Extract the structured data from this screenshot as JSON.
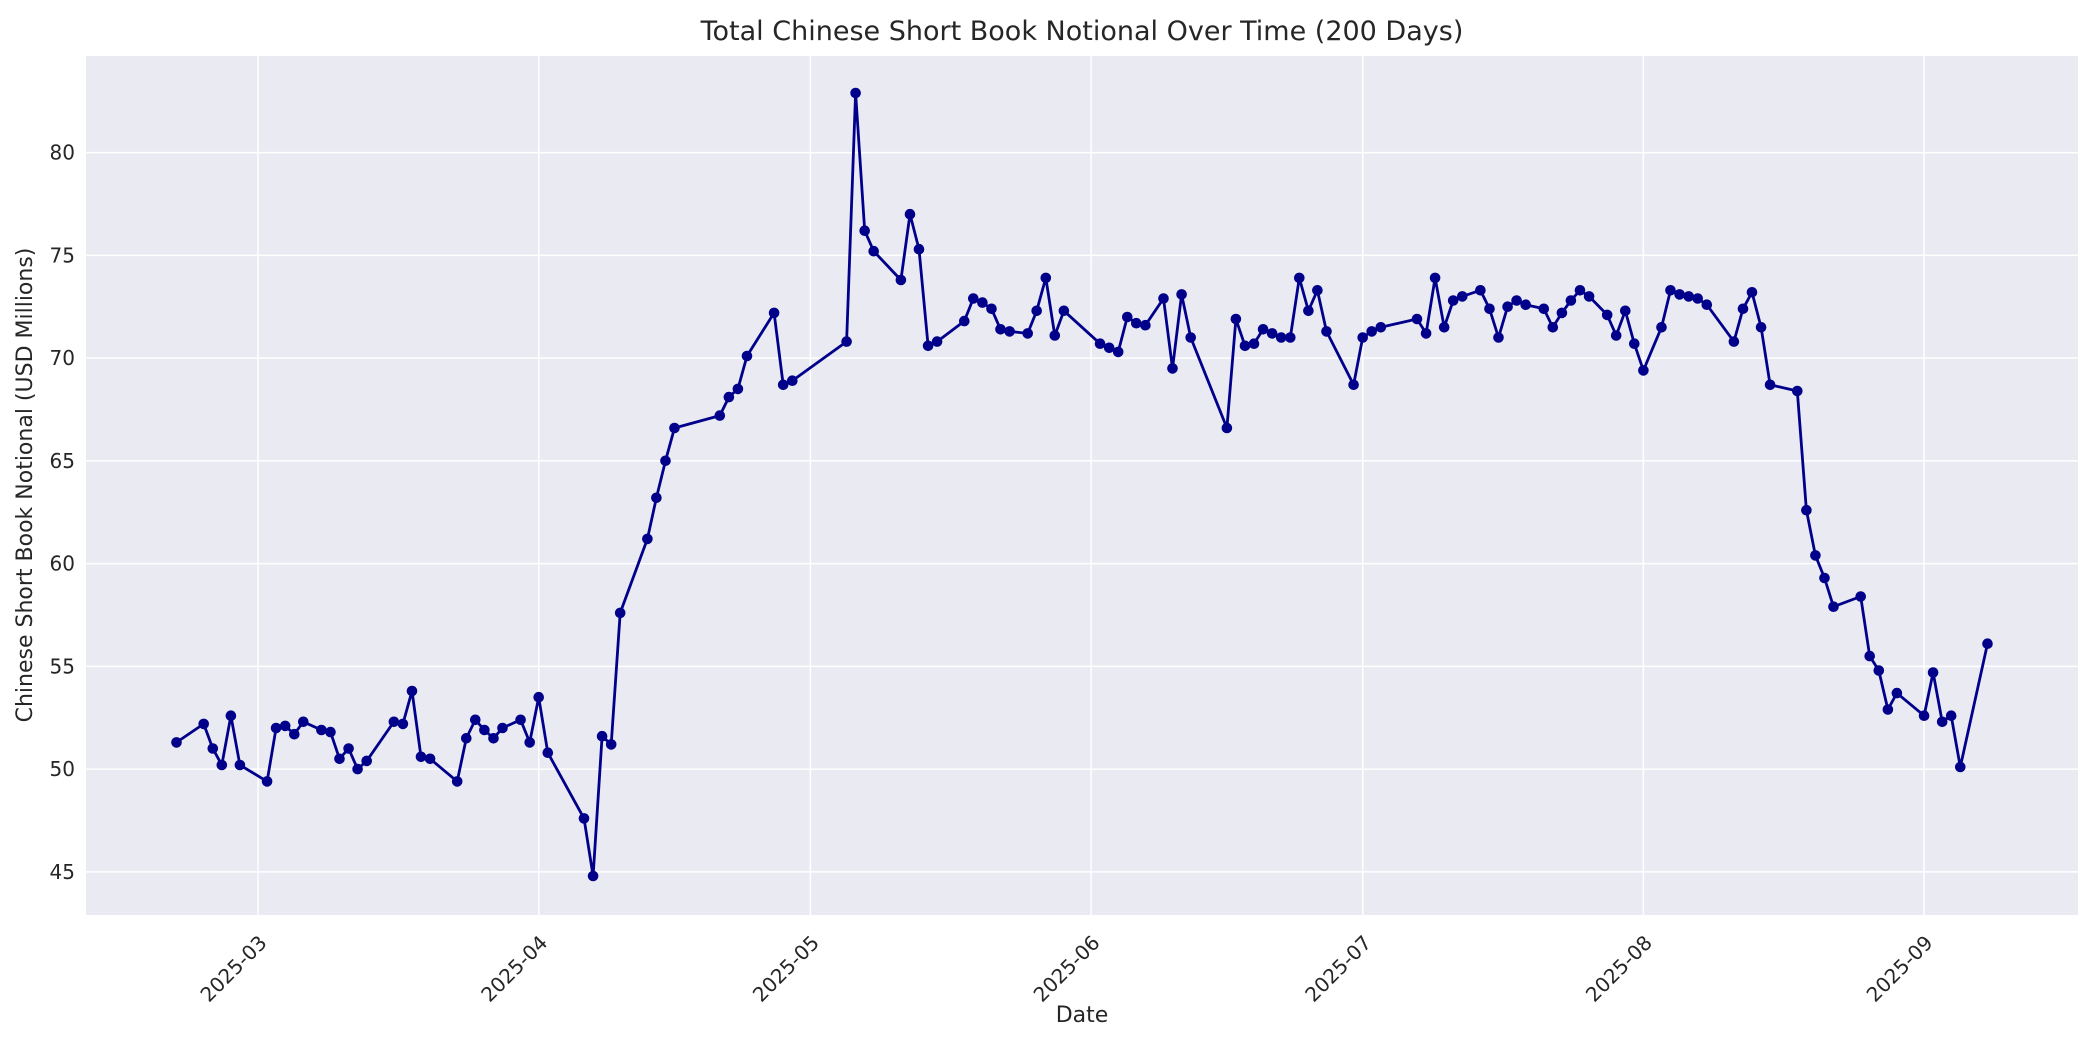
{
  "chart_data": {
    "type": "line",
    "title": "Total Chinese Short Book Notional Over Time (200 Days)",
    "xlabel": "Date",
    "ylabel": "Chinese Short Book Notional (USD Millions)",
    "legend": null,
    "grid": true,
    "line_color": "#00008b",
    "marker": "circle",
    "plot_bg_color": "#eaeaf2",
    "grid_color": "#ffffff",
    "text_color": "#262626",
    "fig_bg_color": "#ffffff",
    "ylim": [
      42.9,
      84.7
    ],
    "xlim": [
      "2025-02-10",
      "2025-09-18"
    ],
    "yticks": [
      45,
      50,
      55,
      60,
      65,
      70,
      75,
      80
    ],
    "xticks": [
      {
        "date": "2025-03-01",
        "label": "2025-03"
      },
      {
        "date": "2025-04-01",
        "label": "2025-04"
      },
      {
        "date": "2025-05-01",
        "label": "2025-05"
      },
      {
        "date": "2025-06-01",
        "label": "2025-06"
      },
      {
        "date": "2025-07-01",
        "label": "2025-07"
      },
      {
        "date": "2025-08-01",
        "label": "2025-08"
      },
      {
        "date": "2025-09-01",
        "label": "2025-09"
      }
    ],
    "x": [
      "2025-02-20",
      "2025-02-23",
      "2025-02-24",
      "2025-02-25",
      "2025-02-26",
      "2025-02-27",
      "2025-03-02",
      "2025-03-03",
      "2025-03-04",
      "2025-03-05",
      "2025-03-06",
      "2025-03-08",
      "2025-03-09",
      "2025-03-10",
      "2025-03-11",
      "2025-03-12",
      "2025-03-13",
      "2025-03-16",
      "2025-03-17",
      "2025-03-18",
      "2025-03-19",
      "2025-03-20",
      "2025-03-23",
      "2025-03-24",
      "2025-03-25",
      "2025-03-26",
      "2025-03-27",
      "2025-03-28",
      "2025-03-30",
      "2025-03-31",
      "2025-04-01",
      "2025-04-02",
      "2025-04-06",
      "2025-04-07",
      "2025-04-08",
      "2025-04-09",
      "2025-04-10",
      "2025-04-13",
      "2025-04-14",
      "2025-04-15",
      "2025-04-16",
      "2025-04-21",
      "2025-04-22",
      "2025-04-23",
      "2025-04-24",
      "2025-04-27",
      "2025-04-28",
      "2025-04-29",
      "2025-05-05",
      "2025-05-06",
      "2025-05-07",
      "2025-05-08",
      "2025-05-11",
      "2025-05-12",
      "2025-05-13",
      "2025-05-14",
      "2025-05-15",
      "2025-05-18",
      "2025-05-19",
      "2025-05-20",
      "2025-05-21",
      "2025-05-22",
      "2025-05-23",
      "2025-05-25",
      "2025-05-26",
      "2025-05-27",
      "2025-05-28",
      "2025-05-29",
      "2025-06-02",
      "2025-06-03",
      "2025-06-04",
      "2025-06-05",
      "2025-06-06",
      "2025-06-07",
      "2025-06-09",
      "2025-06-10",
      "2025-06-11",
      "2025-06-12",
      "2025-06-16",
      "2025-06-17",
      "2025-06-18",
      "2025-06-19",
      "2025-06-20",
      "2025-06-21",
      "2025-06-22",
      "2025-06-23",
      "2025-06-24",
      "2025-06-25",
      "2025-06-26",
      "2025-06-27",
      "2025-06-30",
      "2025-07-01",
      "2025-07-02",
      "2025-07-03",
      "2025-07-07",
      "2025-07-08",
      "2025-07-09",
      "2025-07-10",
      "2025-07-11",
      "2025-07-12",
      "2025-07-14",
      "2025-07-15",
      "2025-07-16",
      "2025-07-17",
      "2025-07-18",
      "2025-07-19",
      "2025-07-21",
      "2025-07-22",
      "2025-07-23",
      "2025-07-24",
      "2025-07-25",
      "2025-07-26",
      "2025-07-28",
      "2025-07-29",
      "2025-07-30",
      "2025-07-31",
      "2025-08-01",
      "2025-08-03",
      "2025-08-04",
      "2025-08-05",
      "2025-08-06",
      "2025-08-07",
      "2025-08-08",
      "2025-08-11",
      "2025-08-12",
      "2025-08-13",
      "2025-08-14",
      "2025-08-15",
      "2025-08-18",
      "2025-08-19",
      "2025-08-20",
      "2025-08-21",
      "2025-08-22",
      "2025-08-25",
      "2025-08-26",
      "2025-08-27",
      "2025-08-28",
      "2025-08-29",
      "2025-09-01",
      "2025-09-02",
      "2025-09-03",
      "2025-09-04",
      "2025-09-05",
      "2025-09-08"
    ],
    "y": [
      51.3,
      52.2,
      51.0,
      50.2,
      52.6,
      50.2,
      49.4,
      52.0,
      52.1,
      51.7,
      52.3,
      51.9,
      51.8,
      50.5,
      51.0,
      50.0,
      50.4,
      52.3,
      52.2,
      53.8,
      50.6,
      50.5,
      49.4,
      51.5,
      52.4,
      51.9,
      51.5,
      52.0,
      52.4,
      51.3,
      53.5,
      50.8,
      47.6,
      44.8,
      51.6,
      51.2,
      57.6,
      61.2,
      63.2,
      65.0,
      66.6,
      67.2,
      68.1,
      68.5,
      70.1,
      72.2,
      68.7,
      68.9,
      70.8,
      82.9,
      76.2,
      75.2,
      73.8,
      77.0,
      75.3,
      70.6,
      70.8,
      71.8,
      72.9,
      72.7,
      72.4,
      71.4,
      71.3,
      71.2,
      72.3,
      73.9,
      71.1,
      72.3,
      70.7,
      70.5,
      70.3,
      72.0,
      71.7,
      71.6,
      72.9,
      69.5,
      73.1,
      71.0,
      66.6,
      71.9,
      70.6,
      70.7,
      71.4,
      71.2,
      71.0,
      71.0,
      73.9,
      72.3,
      73.3,
      71.3,
      68.7,
      71.0,
      71.3,
      71.5,
      71.9,
      71.2,
      73.9,
      71.5,
      72.8,
      73.0,
      73.3,
      72.4,
      71.0,
      72.5,
      72.8,
      72.6,
      72.4,
      71.5,
      72.2,
      72.8,
      73.3,
      73.0,
      72.1,
      71.1,
      72.3,
      70.7,
      69.4,
      71.5,
      73.3,
      73.1,
      73.0,
      72.9,
      72.6,
      70.8,
      72.4,
      73.2,
      71.5,
      68.7,
      68.4,
      62.6,
      60.4,
      59.3,
      57.9,
      58.4,
      55.5,
      54.8,
      52.9,
      53.7,
      52.6,
      54.7,
      52.3,
      52.6,
      50.1,
      56.1
    ]
  }
}
